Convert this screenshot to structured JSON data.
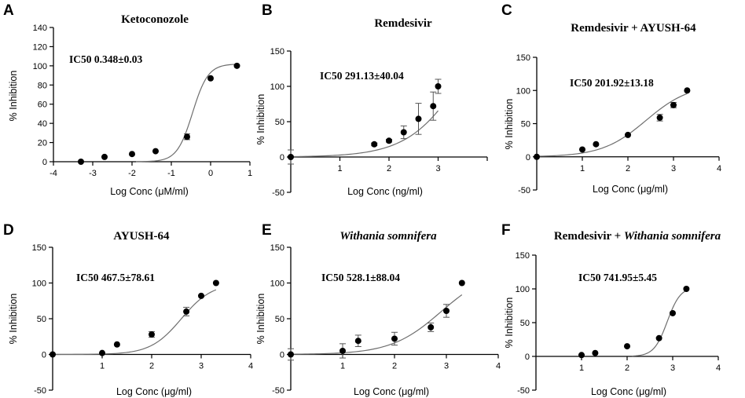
{
  "chart_data": [
    {
      "panel": "A",
      "type": "scatter",
      "title": "Ketoconozole",
      "title_italic": "",
      "annotation": "IC50 0.348±0.03",
      "xlabel": "Log Conc (μM/ml)",
      "ylabel": "% Inhibition",
      "xlim": [
        -4,
        1
      ],
      "ylim": [
        0,
        140
      ],
      "xticks": [
        -4,
        -3,
        -2,
        -1,
        0,
        1
      ],
      "yticks": [
        0,
        20,
        40,
        60,
        80,
        100,
        120,
        140
      ],
      "points": [
        {
          "x": -3.3,
          "y": 0,
          "err": 0
        },
        {
          "x": -2.7,
          "y": 5,
          "err": 0
        },
        {
          "x": -2.0,
          "y": 8,
          "err": 0
        },
        {
          "x": -1.4,
          "y": 11,
          "err": 0
        },
        {
          "x": -0.6,
          "y": 26,
          "err": 3
        },
        {
          "x": 0.0,
          "y": 87,
          "err": 0
        },
        {
          "x": 0.67,
          "y": 100,
          "err": 0
        }
      ],
      "curve": {
        "bottom": 0,
        "top": 102,
        "logIC50": -0.46,
        "hill": 2.2,
        "xmin": -1.9,
        "xmax": 0.67
      }
    },
    {
      "panel": "B",
      "type": "scatter",
      "title": "Remdesivir",
      "title_italic": "",
      "annotation": "IC50 291.13±40.04",
      "xlabel": "Log Conc (ng/ml)",
      "ylabel": "% Inhibition",
      "xlim": [
        0,
        4
      ],
      "ylim": [
        -50,
        150
      ],
      "xticks": [
        1,
        2,
        3,
        4
      ],
      "xtick_labels": [
        "1",
        "2",
        "3",
        ""
      ],
      "yticks": [
        -50,
        0,
        50,
        100,
        150
      ],
      "points": [
        {
          "x": 0,
          "y": 0,
          "err": 10
        },
        {
          "x": 1.7,
          "y": 18,
          "err": 2
        },
        {
          "x": 2.0,
          "y": 23,
          "err": 2
        },
        {
          "x": 2.3,
          "y": 35,
          "err": 9
        },
        {
          "x": 2.6,
          "y": 54,
          "err": 22
        },
        {
          "x": 2.9,
          "y": 72,
          "err": 20
        },
        {
          "x": 3.0,
          "y": 100,
          "err": 10
        }
      ],
      "curve": {
        "bottom": 0,
        "top": 250,
        "logIC50": 3.6,
        "hill": 0.75,
        "xmin": 0,
        "xmax": 3.0
      }
    },
    {
      "panel": "C",
      "type": "scatter",
      "title": "Remdesivir + AYUSH-64",
      "title_italic": "",
      "annotation": "IC50 201.92±13.18",
      "xlabel": "Log Conc (μg/ml)",
      "ylabel": "% Inhibition",
      "xlim": [
        0,
        4
      ],
      "ylim": [
        -50,
        150
      ],
      "xticks": [
        1,
        2,
        3,
        4
      ],
      "yticks": [
        -50,
        0,
        50,
        100,
        150
      ],
      "points": [
        {
          "x": 0,
          "y": 0,
          "err": 0
        },
        {
          "x": 1.0,
          "y": 11,
          "err": 0
        },
        {
          "x": 1.3,
          "y": 19,
          "err": 0
        },
        {
          "x": 2.0,
          "y": 33,
          "err": 0
        },
        {
          "x": 2.7,
          "y": 59,
          "err": 5
        },
        {
          "x": 3.0,
          "y": 78,
          "err": 4
        },
        {
          "x": 3.3,
          "y": 100,
          "err": 0
        }
      ],
      "curve": {
        "bottom": 0,
        "top": 110,
        "logIC50": 2.4,
        "hill": 0.9,
        "xmin": 0,
        "xmax": 3.3
      }
    },
    {
      "panel": "D",
      "type": "scatter",
      "title": "AYUSH-64",
      "title_italic": "",
      "annotation": "IC50 467.5±78.61",
      "xlabel": "Log Conc (μg/ml)",
      "ylabel": "% Inhibition",
      "xlim": [
        0,
        4
      ],
      "ylim": [
        -50,
        150
      ],
      "xticks": [
        1,
        2,
        3,
        4
      ],
      "yticks": [
        -50,
        0,
        50,
        100,
        150
      ],
      "points": [
        {
          "x": 0,
          "y": 0,
          "err": 0
        },
        {
          "x": 1.0,
          "y": 2,
          "err": 0
        },
        {
          "x": 1.3,
          "y": 14,
          "err": 0
        },
        {
          "x": 2.0,
          "y": 28,
          "err": 4
        },
        {
          "x": 2.7,
          "y": 60,
          "err": 6
        },
        {
          "x": 3.0,
          "y": 82,
          "err": 0
        },
        {
          "x": 3.3,
          "y": 100,
          "err": 0
        }
      ],
      "curve": {
        "bottom": 0,
        "top": 100,
        "logIC50": 2.6,
        "hill": 1.4,
        "xmin": 0,
        "xmax": 3.3
      }
    },
    {
      "panel": "E",
      "type": "scatter",
      "title": "",
      "title_italic": "Withania somnifera",
      "annotation": "IC50 528.1±88.04",
      "xlabel": "Log Conc (μg/ml)",
      "ylabel": "% Inhibition",
      "xlim": [
        0,
        4
      ],
      "ylim": [
        -50,
        150
      ],
      "xticks": [
        1,
        2,
        3,
        4
      ],
      "yticks": [
        -50,
        0,
        50,
        100,
        150
      ],
      "points": [
        {
          "x": 0,
          "y": 0,
          "err": 8
        },
        {
          "x": 1.0,
          "y": 5,
          "err": 10
        },
        {
          "x": 1.3,
          "y": 19,
          "err": 8
        },
        {
          "x": 2.0,
          "y": 22,
          "err": 9
        },
        {
          "x": 2.7,
          "y": 38,
          "err": 6
        },
        {
          "x": 3.0,
          "y": 61,
          "err": 9
        },
        {
          "x": 3.3,
          "y": 100,
          "err": 0
        }
      ],
      "curve": {
        "bottom": 0,
        "top": 120,
        "logIC50": 2.9,
        "hill": 0.9,
        "xmin": 0,
        "xmax": 3.3
      }
    },
    {
      "panel": "F",
      "type": "scatter",
      "title": "Remdesivir + ",
      "title_italic": "Withania somnifera",
      "annotation": "IC50 741.95±5.45",
      "xlabel": "Log Conc (μg/ml)",
      "ylabel": "% Inhibition",
      "xlim": [
        0,
        4
      ],
      "ylim": [
        -50,
        150
      ],
      "xticks": [
        1,
        2,
        3,
        4
      ],
      "yticks": [
        -50,
        0,
        50,
        100,
        150
      ],
      "points": [
        {
          "x": 1.0,
          "y": 2,
          "err": 0
        },
        {
          "x": 1.3,
          "y": 5,
          "err": 0
        },
        {
          "x": 2.0,
          "y": 15,
          "err": 0
        },
        {
          "x": 2.7,
          "y": 27,
          "err": 0
        },
        {
          "x": 3.0,
          "y": 64,
          "err": 0
        },
        {
          "x": 3.3,
          "y": 100,
          "err": 0
        }
      ],
      "curve": {
        "bottom": 0,
        "top": 103,
        "logIC50": 2.88,
        "hill": 3.0,
        "xmin": 2.1,
        "xmax": 3.3
      }
    }
  ]
}
